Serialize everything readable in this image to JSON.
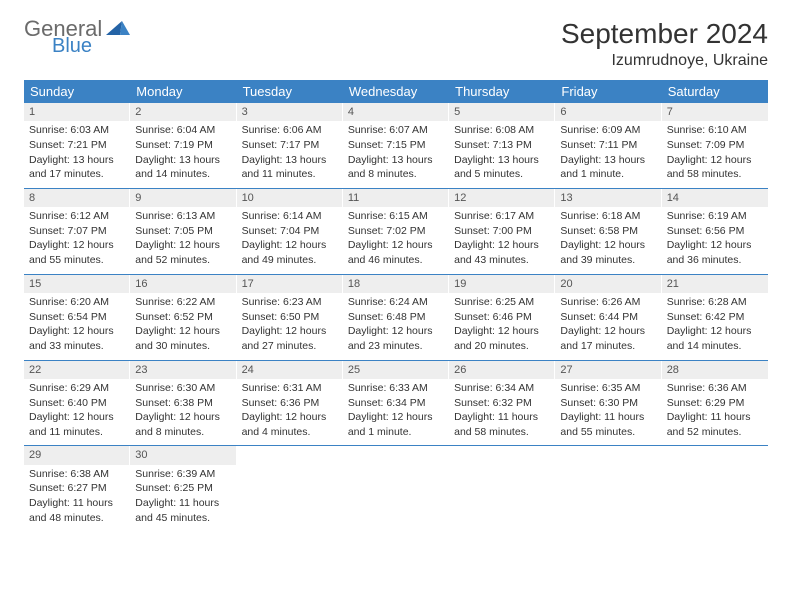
{
  "logo": {
    "text1": "General",
    "text2": "Blue"
  },
  "title": "September 2024",
  "location": "Izumrudnoye, Ukraine",
  "day_headers": [
    "Sunday",
    "Monday",
    "Tuesday",
    "Wednesday",
    "Thursday",
    "Friday",
    "Saturday"
  ],
  "colors": {
    "header_bg": "#3b82c4",
    "daynum_bg": "#eeeeee",
    "row_border": "#3b82c4",
    "text": "#333333",
    "logo_gray": "#6b6b6b",
    "logo_blue": "#3b82c4"
  },
  "days": [
    {
      "n": "1",
      "sunrise": "Sunrise: 6:03 AM",
      "sunset": "Sunset: 7:21 PM",
      "d1": "Daylight: 13 hours",
      "d2": "and 17 minutes."
    },
    {
      "n": "2",
      "sunrise": "Sunrise: 6:04 AM",
      "sunset": "Sunset: 7:19 PM",
      "d1": "Daylight: 13 hours",
      "d2": "and 14 minutes."
    },
    {
      "n": "3",
      "sunrise": "Sunrise: 6:06 AM",
      "sunset": "Sunset: 7:17 PM",
      "d1": "Daylight: 13 hours",
      "d2": "and 11 minutes."
    },
    {
      "n": "4",
      "sunrise": "Sunrise: 6:07 AM",
      "sunset": "Sunset: 7:15 PM",
      "d1": "Daylight: 13 hours",
      "d2": "and 8 minutes."
    },
    {
      "n": "5",
      "sunrise": "Sunrise: 6:08 AM",
      "sunset": "Sunset: 7:13 PM",
      "d1": "Daylight: 13 hours",
      "d2": "and 5 minutes."
    },
    {
      "n": "6",
      "sunrise": "Sunrise: 6:09 AM",
      "sunset": "Sunset: 7:11 PM",
      "d1": "Daylight: 13 hours",
      "d2": "and 1 minute."
    },
    {
      "n": "7",
      "sunrise": "Sunrise: 6:10 AM",
      "sunset": "Sunset: 7:09 PM",
      "d1": "Daylight: 12 hours",
      "d2": "and 58 minutes."
    },
    {
      "n": "8",
      "sunrise": "Sunrise: 6:12 AM",
      "sunset": "Sunset: 7:07 PM",
      "d1": "Daylight: 12 hours",
      "d2": "and 55 minutes."
    },
    {
      "n": "9",
      "sunrise": "Sunrise: 6:13 AM",
      "sunset": "Sunset: 7:05 PM",
      "d1": "Daylight: 12 hours",
      "d2": "and 52 minutes."
    },
    {
      "n": "10",
      "sunrise": "Sunrise: 6:14 AM",
      "sunset": "Sunset: 7:04 PM",
      "d1": "Daylight: 12 hours",
      "d2": "and 49 minutes."
    },
    {
      "n": "11",
      "sunrise": "Sunrise: 6:15 AM",
      "sunset": "Sunset: 7:02 PM",
      "d1": "Daylight: 12 hours",
      "d2": "and 46 minutes."
    },
    {
      "n": "12",
      "sunrise": "Sunrise: 6:17 AM",
      "sunset": "Sunset: 7:00 PM",
      "d1": "Daylight: 12 hours",
      "d2": "and 43 minutes."
    },
    {
      "n": "13",
      "sunrise": "Sunrise: 6:18 AM",
      "sunset": "Sunset: 6:58 PM",
      "d1": "Daylight: 12 hours",
      "d2": "and 39 minutes."
    },
    {
      "n": "14",
      "sunrise": "Sunrise: 6:19 AM",
      "sunset": "Sunset: 6:56 PM",
      "d1": "Daylight: 12 hours",
      "d2": "and 36 minutes."
    },
    {
      "n": "15",
      "sunrise": "Sunrise: 6:20 AM",
      "sunset": "Sunset: 6:54 PM",
      "d1": "Daylight: 12 hours",
      "d2": "and 33 minutes."
    },
    {
      "n": "16",
      "sunrise": "Sunrise: 6:22 AM",
      "sunset": "Sunset: 6:52 PM",
      "d1": "Daylight: 12 hours",
      "d2": "and 30 minutes."
    },
    {
      "n": "17",
      "sunrise": "Sunrise: 6:23 AM",
      "sunset": "Sunset: 6:50 PM",
      "d1": "Daylight: 12 hours",
      "d2": "and 27 minutes."
    },
    {
      "n": "18",
      "sunrise": "Sunrise: 6:24 AM",
      "sunset": "Sunset: 6:48 PM",
      "d1": "Daylight: 12 hours",
      "d2": "and 23 minutes."
    },
    {
      "n": "19",
      "sunrise": "Sunrise: 6:25 AM",
      "sunset": "Sunset: 6:46 PM",
      "d1": "Daylight: 12 hours",
      "d2": "and 20 minutes."
    },
    {
      "n": "20",
      "sunrise": "Sunrise: 6:26 AM",
      "sunset": "Sunset: 6:44 PM",
      "d1": "Daylight: 12 hours",
      "d2": "and 17 minutes."
    },
    {
      "n": "21",
      "sunrise": "Sunrise: 6:28 AM",
      "sunset": "Sunset: 6:42 PM",
      "d1": "Daylight: 12 hours",
      "d2": "and 14 minutes."
    },
    {
      "n": "22",
      "sunrise": "Sunrise: 6:29 AM",
      "sunset": "Sunset: 6:40 PM",
      "d1": "Daylight: 12 hours",
      "d2": "and 11 minutes."
    },
    {
      "n": "23",
      "sunrise": "Sunrise: 6:30 AM",
      "sunset": "Sunset: 6:38 PM",
      "d1": "Daylight: 12 hours",
      "d2": "and 8 minutes."
    },
    {
      "n": "24",
      "sunrise": "Sunrise: 6:31 AM",
      "sunset": "Sunset: 6:36 PM",
      "d1": "Daylight: 12 hours",
      "d2": "and 4 minutes."
    },
    {
      "n": "25",
      "sunrise": "Sunrise: 6:33 AM",
      "sunset": "Sunset: 6:34 PM",
      "d1": "Daylight: 12 hours",
      "d2": "and 1 minute."
    },
    {
      "n": "26",
      "sunrise": "Sunrise: 6:34 AM",
      "sunset": "Sunset: 6:32 PM",
      "d1": "Daylight: 11 hours",
      "d2": "and 58 minutes."
    },
    {
      "n": "27",
      "sunrise": "Sunrise: 6:35 AM",
      "sunset": "Sunset: 6:30 PM",
      "d1": "Daylight: 11 hours",
      "d2": "and 55 minutes."
    },
    {
      "n": "28",
      "sunrise": "Sunrise: 6:36 AM",
      "sunset": "Sunset: 6:29 PM",
      "d1": "Daylight: 11 hours",
      "d2": "and 52 minutes."
    },
    {
      "n": "29",
      "sunrise": "Sunrise: 6:38 AM",
      "sunset": "Sunset: 6:27 PM",
      "d1": "Daylight: 11 hours",
      "d2": "and 48 minutes."
    },
    {
      "n": "30",
      "sunrise": "Sunrise: 6:39 AM",
      "sunset": "Sunset: 6:25 PM",
      "d1": "Daylight: 11 hours",
      "d2": "and 45 minutes."
    }
  ],
  "weeks": [
    [
      0,
      1,
      2,
      3,
      4,
      5,
      6
    ],
    [
      7,
      8,
      9,
      10,
      11,
      12,
      13
    ],
    [
      14,
      15,
      16,
      17,
      18,
      19,
      20
    ],
    [
      21,
      22,
      23,
      24,
      25,
      26,
      27
    ],
    [
      28,
      29,
      null,
      null,
      null,
      null,
      null
    ]
  ]
}
